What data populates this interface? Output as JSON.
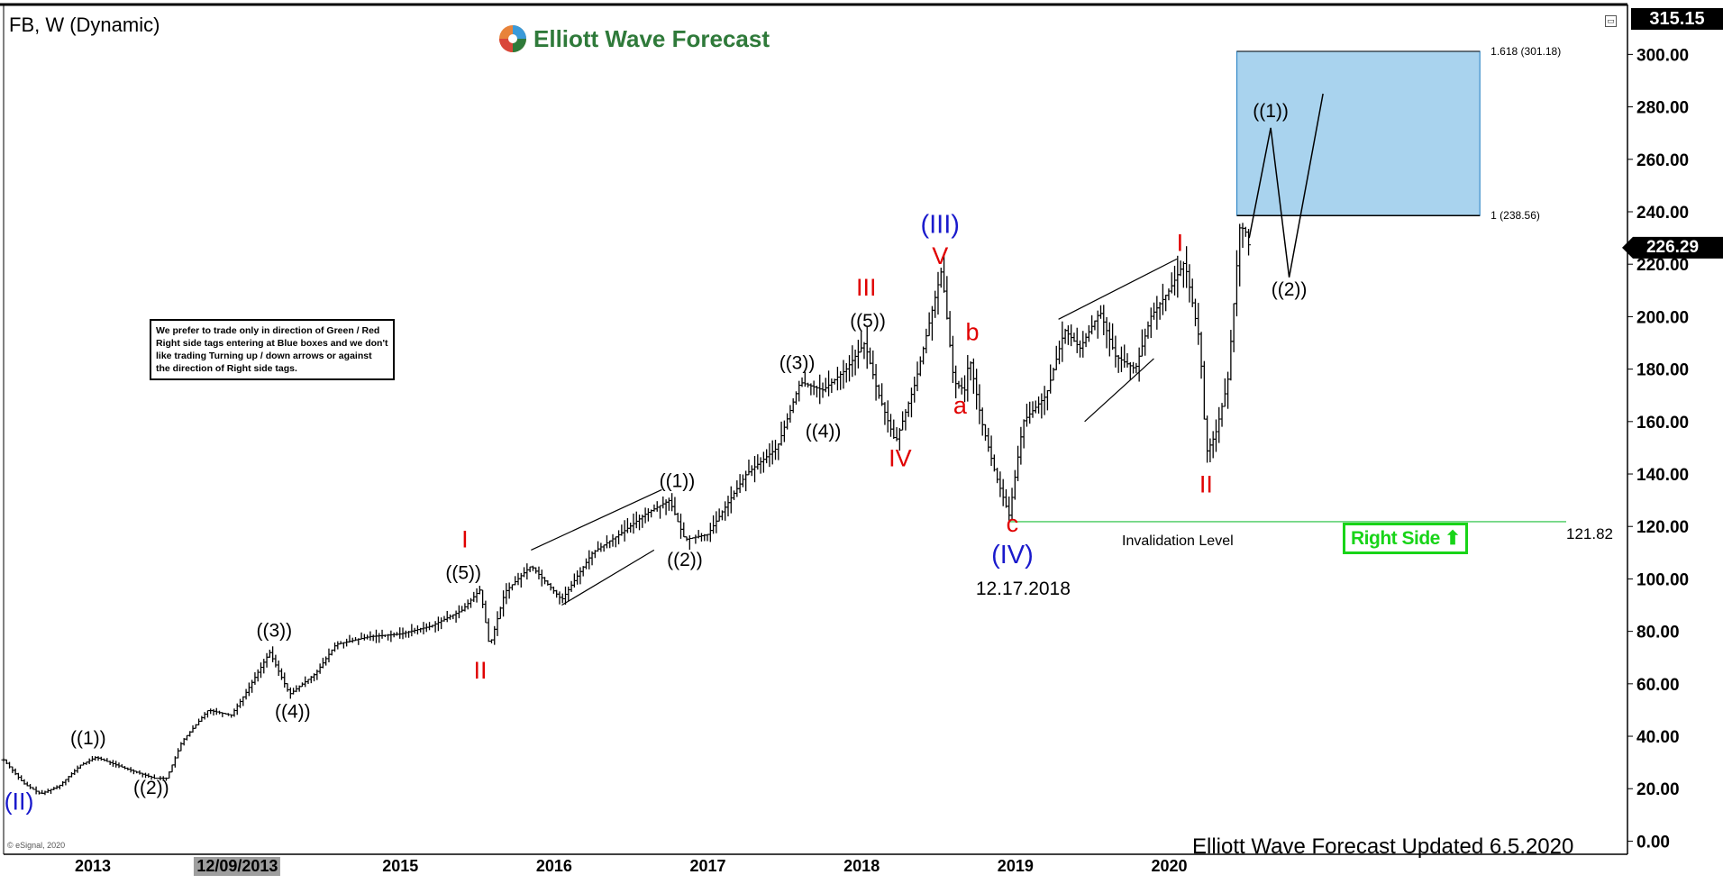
{
  "header": {
    "symbol_title": "FB, W (Dynamic)"
  },
  "logo": {
    "text": "Elliott Wave Forecast"
  },
  "note": {
    "text": "We prefer to trade only in direction of Green / Red Right side tags entering at Blue boxes and we don't like trading Turning up / down arrows or against the direction of Right side tags."
  },
  "right_side_tag": {
    "label": "Right Side",
    "icon": "up-arrow-icon",
    "color": "#18d418"
  },
  "footer": {
    "text": "Elliott Wave Forecast Updated 6.5.2020",
    "copyright": "© eSignal, 2020"
  },
  "price_axis": {
    "top_price": "315.15",
    "last_price": "226.29",
    "ticks": [
      "300.00",
      "280.00",
      "260.00",
      "240.00",
      "220.00",
      "200.00",
      "180.00",
      "160.00",
      "140.00",
      "120.00",
      "100.00",
      "80.00",
      "60.00",
      "40.00",
      "20.00",
      "0.00"
    ]
  },
  "time_axis": {
    "labels": [
      {
        "text": "2013",
        "t": 2013.0
      },
      {
        "text": "12/09/2013",
        "t": 2013.94,
        "highlight": true
      },
      {
        "text": "2015",
        "t": 2015.0
      },
      {
        "text": "2016",
        "t": 2016.0
      },
      {
        "text": "2017",
        "t": 2017.0
      },
      {
        "text": "2018",
        "t": 2018.0
      },
      {
        "text": "2019",
        "t": 2019.0
      },
      {
        "text": "2020",
        "t": 2020.0
      }
    ]
  },
  "chart_data": {
    "type": "ohlc",
    "symbol": "FB",
    "timeframe": "W",
    "xlim": [
      2012.42,
      2022.98
    ],
    "ylim": [
      -5,
      318
    ],
    "price_path": [
      [
        2012.42,
        31
      ],
      [
        2012.55,
        22
      ],
      [
        2012.66,
        18
      ],
      [
        2012.78,
        21
      ],
      [
        2012.92,
        29
      ],
      [
        2013.02,
        32
      ],
      [
        2013.2,
        28
      ],
      [
        2013.4,
        24
      ],
      [
        2013.48,
        24
      ],
      [
        2013.58,
        38
      ],
      [
        2013.75,
        50
      ],
      [
        2013.9,
        48
      ],
      [
        2014.0,
        57
      ],
      [
        2014.15,
        72
      ],
      [
        2014.28,
        56
      ],
      [
        2014.45,
        64
      ],
      [
        2014.58,
        75
      ],
      [
        2014.8,
        78
      ],
      [
        2015.0,
        79
      ],
      [
        2015.2,
        82
      ],
      [
        2015.4,
        88
      ],
      [
        2015.52,
        96
      ],
      [
        2015.58,
        74
      ],
      [
        2015.68,
        95
      ],
      [
        2015.85,
        105
      ],
      [
        2016.05,
        92
      ],
      [
        2016.25,
        110
      ],
      [
        2016.45,
        118
      ],
      [
        2016.6,
        125
      ],
      [
        2016.75,
        130
      ],
      [
        2016.85,
        115
      ],
      [
        2017.0,
        117
      ],
      [
        2017.25,
        140
      ],
      [
        2017.45,
        150
      ],
      [
        2017.6,
        175
      ],
      [
        2017.75,
        172
      ],
      [
        2017.9,
        180
      ],
      [
        2018.02,
        190
      ],
      [
        2018.1,
        172
      ],
      [
        2018.22,
        152
      ],
      [
        2018.35,
        175
      ],
      [
        2018.52,
        218
      ],
      [
        2018.6,
        175
      ],
      [
        2018.67,
        172
      ],
      [
        2018.7,
        185
      ],
      [
        2018.78,
        160
      ],
      [
        2018.87,
        140
      ],
      [
        2018.96,
        124
      ],
      [
        2019.05,
        160
      ],
      [
        2019.2,
        170
      ],
      [
        2019.32,
        195
      ],
      [
        2019.42,
        188
      ],
      [
        2019.55,
        202
      ],
      [
        2019.65,
        185
      ],
      [
        2019.78,
        180
      ],
      [
        2019.88,
        200
      ],
      [
        2020.0,
        210
      ],
      [
        2020.1,
        221
      ],
      [
        2020.2,
        190
      ],
      [
        2020.24,
        148
      ],
      [
        2020.3,
        155
      ],
      [
        2020.38,
        175
      ],
      [
        2020.46,
        235
      ],
      [
        2020.5,
        232
      ],
      [
        2020.52,
        226.29
      ]
    ],
    "projection_path": [
      [
        2020.52,
        230
      ],
      [
        2020.66,
        272
      ],
      [
        2020.78,
        215
      ],
      [
        2021.0,
        285
      ]
    ],
    "target_box": {
      "x_from": 2020.44,
      "x_to": 2022.02,
      "y_from": 238.56,
      "y_to": 301.18,
      "color": "#a9d3ee",
      "border": "#1a7ac0"
    },
    "fib_levels": [
      {
        "label": "1.618 (301.18)",
        "value": 301.18
      },
      {
        "label": "1 (238.56)",
        "value": 238.56
      }
    ],
    "invalidation": {
      "value": 121.82,
      "label": "Invalidation Level",
      "value_label": "121.82",
      "color": "#1dbf3a",
      "x_from": 2018.96
    },
    "wave_labels": [
      {
        "text": "(II)",
        "t": 2012.52,
        "p": 12,
        "color": "#1a1acc",
        "size": 27
      },
      {
        "text": "((1))",
        "t": 2012.97,
        "p": 37,
        "color": "#000",
        "size": 21
      },
      {
        "text": "((2))",
        "t": 2013.38,
        "p": 18,
        "color": "#000",
        "size": 21
      },
      {
        "text": "((3))",
        "t": 2014.18,
        "p": 78,
        "color": "#000",
        "size": 21
      },
      {
        "text": "((4))",
        "t": 2014.3,
        "p": 47,
        "color": "#000",
        "size": 21
      },
      {
        "text": "I",
        "t": 2015.42,
        "p": 112,
        "color": "#e00000",
        "size": 27
      },
      {
        "text": "((5))",
        "t": 2015.41,
        "p": 100,
        "color": "#000",
        "size": 21
      },
      {
        "text": "II",
        "t": 2015.52,
        "p": 62,
        "color": "#e00000",
        "size": 27
      },
      {
        "text": "((1))",
        "t": 2016.8,
        "p": 135,
        "color": "#000",
        "size": 21
      },
      {
        "text": "((2))",
        "t": 2016.85,
        "p": 105,
        "color": "#000",
        "size": 21
      },
      {
        "text": "((3))",
        "t": 2017.58,
        "p": 180,
        "color": "#000",
        "size": 21
      },
      {
        "text": "((4))",
        "t": 2017.75,
        "p": 154,
        "color": "#000",
        "size": 21
      },
      {
        "text": "III",
        "t": 2018.03,
        "p": 208,
        "color": "#e00000",
        "size": 27
      },
      {
        "text": "((5))",
        "t": 2018.04,
        "p": 196,
        "color": "#000",
        "size": 21
      },
      {
        "text": "IV",
        "t": 2018.25,
        "p": 143,
        "color": "#e00000",
        "size": 27
      },
      {
        "text": "(III)",
        "t": 2018.51,
        "p": 232,
        "color": "#1a1acc",
        "size": 29
      },
      {
        "text": "V",
        "t": 2018.51,
        "p": 220,
        "color": "#e00000",
        "size": 27
      },
      {
        "text": "b",
        "t": 2018.72,
        "p": 191,
        "color": "#e00000",
        "size": 27
      },
      {
        "text": "a",
        "t": 2018.64,
        "p": 163,
        "color": "#e00000",
        "size": 27
      },
      {
        "text": "c",
        "t": 2018.98,
        "p": 118,
        "color": "#e00000",
        "size": 27
      },
      {
        "text": "(IV)",
        "t": 2018.98,
        "p": 106,
        "color": "#1a1acc",
        "size": 29
      },
      {
        "text": "12.17.2018",
        "t": 2019.05,
        "p": 94,
        "color": "#000",
        "size": 21
      },
      {
        "text": "I",
        "t": 2020.07,
        "p": 225,
        "color": "#e00000",
        "size": 27
      },
      {
        "text": "II",
        "t": 2020.24,
        "p": 133,
        "color": "#e00000",
        "size": 27
      },
      {
        "text": "((1))",
        "t": 2020.66,
        "p": 276,
        "color": "#000",
        "size": 21
      },
      {
        "text": "((2))",
        "t": 2020.78,
        "p": 208,
        "color": "#000",
        "size": 21
      }
    ],
    "channels": [
      [
        [
          2015.85,
          111
        ],
        [
          2016.7,
          134
        ]
      ],
      [
        [
          2016.05,
          90
        ],
        [
          2016.65,
          111
        ]
      ],
      [
        [
          2019.28,
          199
        ],
        [
          2020.05,
          222
        ]
      ],
      [
        [
          2019.45,
          160
        ],
        [
          2019.9,
          184
        ]
      ]
    ]
  }
}
